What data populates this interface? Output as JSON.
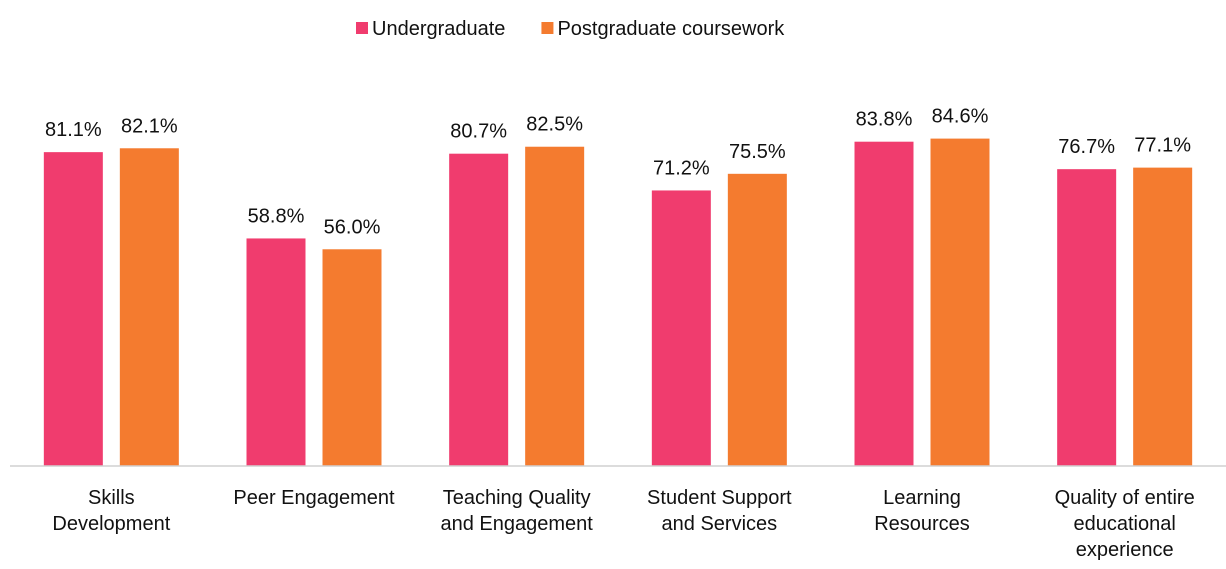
{
  "chart_data": {
    "type": "bar",
    "categories": [
      "Skills Development",
      "Peer Engagement",
      "Teaching Quality and Engagement",
      "Student Support and Services",
      "Learning Resources",
      "Quality of entire educational experience"
    ],
    "series": [
      {
        "name": "Undergraduate",
        "color": "#f03c6e",
        "values": [
          81.1,
          58.8,
          80.7,
          71.2,
          83.8,
          76.7
        ],
        "value_labels": [
          "81.1%",
          "58.8%",
          "80.7%",
          "71.2%",
          "83.8%",
          "76.7%"
        ]
      },
      {
        "name": "Postgraduate coursework",
        "color": "#f47b2f",
        "values": [
          82.1,
          56.0,
          82.5,
          75.5,
          84.6,
          77.1
        ],
        "value_labels": [
          "82.1%",
          "56.0%",
          "82.5%",
          "75.5%",
          "84.6%",
          "77.1%"
        ]
      }
    ],
    "ylim": [
      0,
      100
    ],
    "legend": "top"
  }
}
